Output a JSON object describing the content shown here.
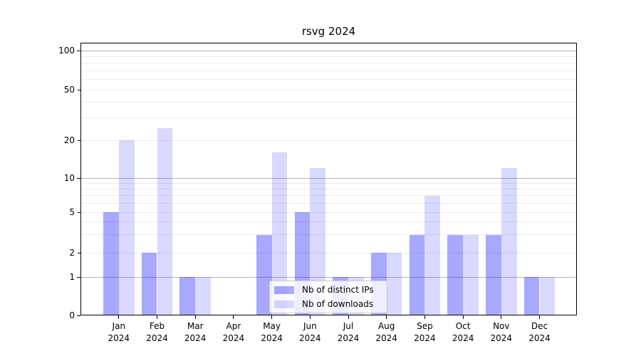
{
  "chart_data": {
    "type": "bar",
    "title": "rsvg 2024",
    "categories": [
      "Jan 2024",
      "Feb 2024",
      "Mar 2024",
      "Apr 2024",
      "May 2024",
      "Jun 2024",
      "Jul 2024",
      "Aug 2024",
      "Sep 2024",
      "Oct 2024",
      "Nov 2024",
      "Dec 2024"
    ],
    "category_months": [
      "Jan",
      "Feb",
      "Mar",
      "Apr",
      "May",
      "Jun",
      "Jul",
      "Aug",
      "Sep",
      "Oct",
      "Nov",
      "Dec"
    ],
    "category_year": "2024",
    "series": [
      {
        "name": "Nb of distinct IPs",
        "values": [
          5,
          2,
          1,
          0,
          3,
          5,
          1,
          2,
          3,
          3,
          3,
          1
        ],
        "color": "rgba(0,0,255,0.34)"
      },
      {
        "name": "Nb of downloads",
        "values": [
          20,
          25,
          1,
          0,
          16,
          12,
          1,
          2,
          7,
          3,
          12,
          1
        ],
        "color": "rgba(0,0,255,0.15)"
      }
    ],
    "y_axis": {
      "scale": "symlog",
      "ylim": [
        0,
        100
      ],
      "tick_labels": [
        "0",
        "1",
        "2",
        "5",
        "10",
        "20",
        "50",
        "100"
      ],
      "tick_values": [
        0,
        1,
        2,
        5,
        10,
        20,
        50,
        100
      ],
      "major_gridline_values": [
        1,
        10,
        100
      ],
      "minor_gridline_values": [
        2,
        3,
        4,
        5,
        6,
        7,
        8,
        9,
        20,
        30,
        40,
        50,
        60,
        70,
        80,
        90
      ]
    },
    "grid": "horizontal-only",
    "legend_position": "lower center"
  },
  "colors": {
    "bar_distinct_ips": "rgba(0,0,255,0.34)",
    "bar_downloads": "rgba(0,0,255,0.15)",
    "major_gridline": "#b6b6b6",
    "minor_gridline": "#ececec",
    "frame": "#000000",
    "legend_border": "#cccccc"
  }
}
